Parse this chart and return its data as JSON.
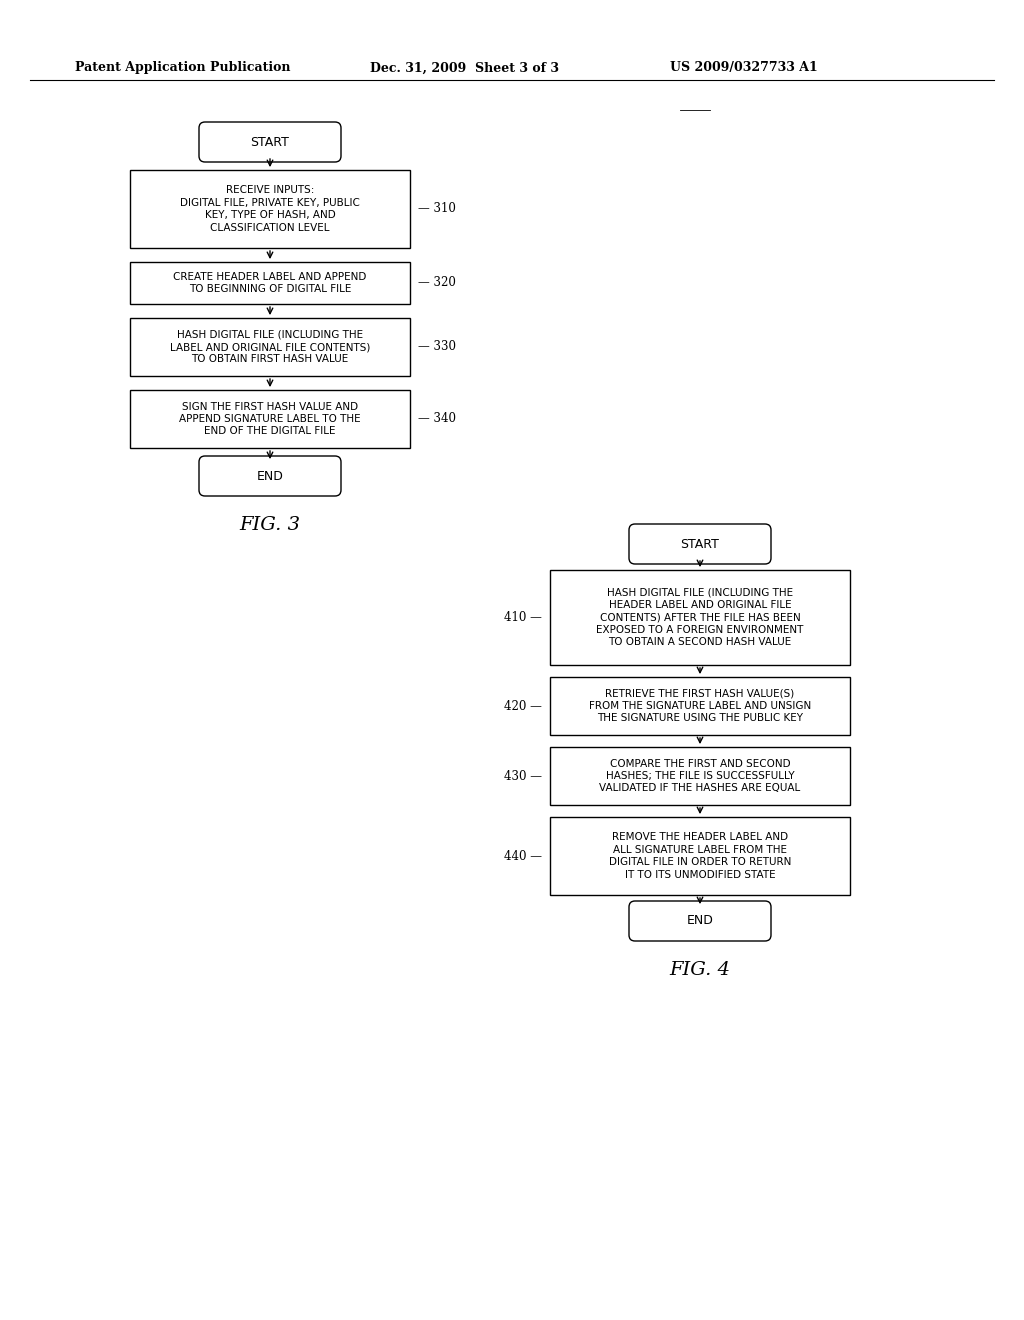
{
  "bg_color": "#ffffff",
  "header_line1": "Patent Application Publication",
  "header_line2": "Dec. 31, 2009  Sheet 3 of 3",
  "header_line3": "US 2009/0327733 A1",
  "fig3_title": "FIG. 3",
  "fig4_title": "FIG. 4"
}
